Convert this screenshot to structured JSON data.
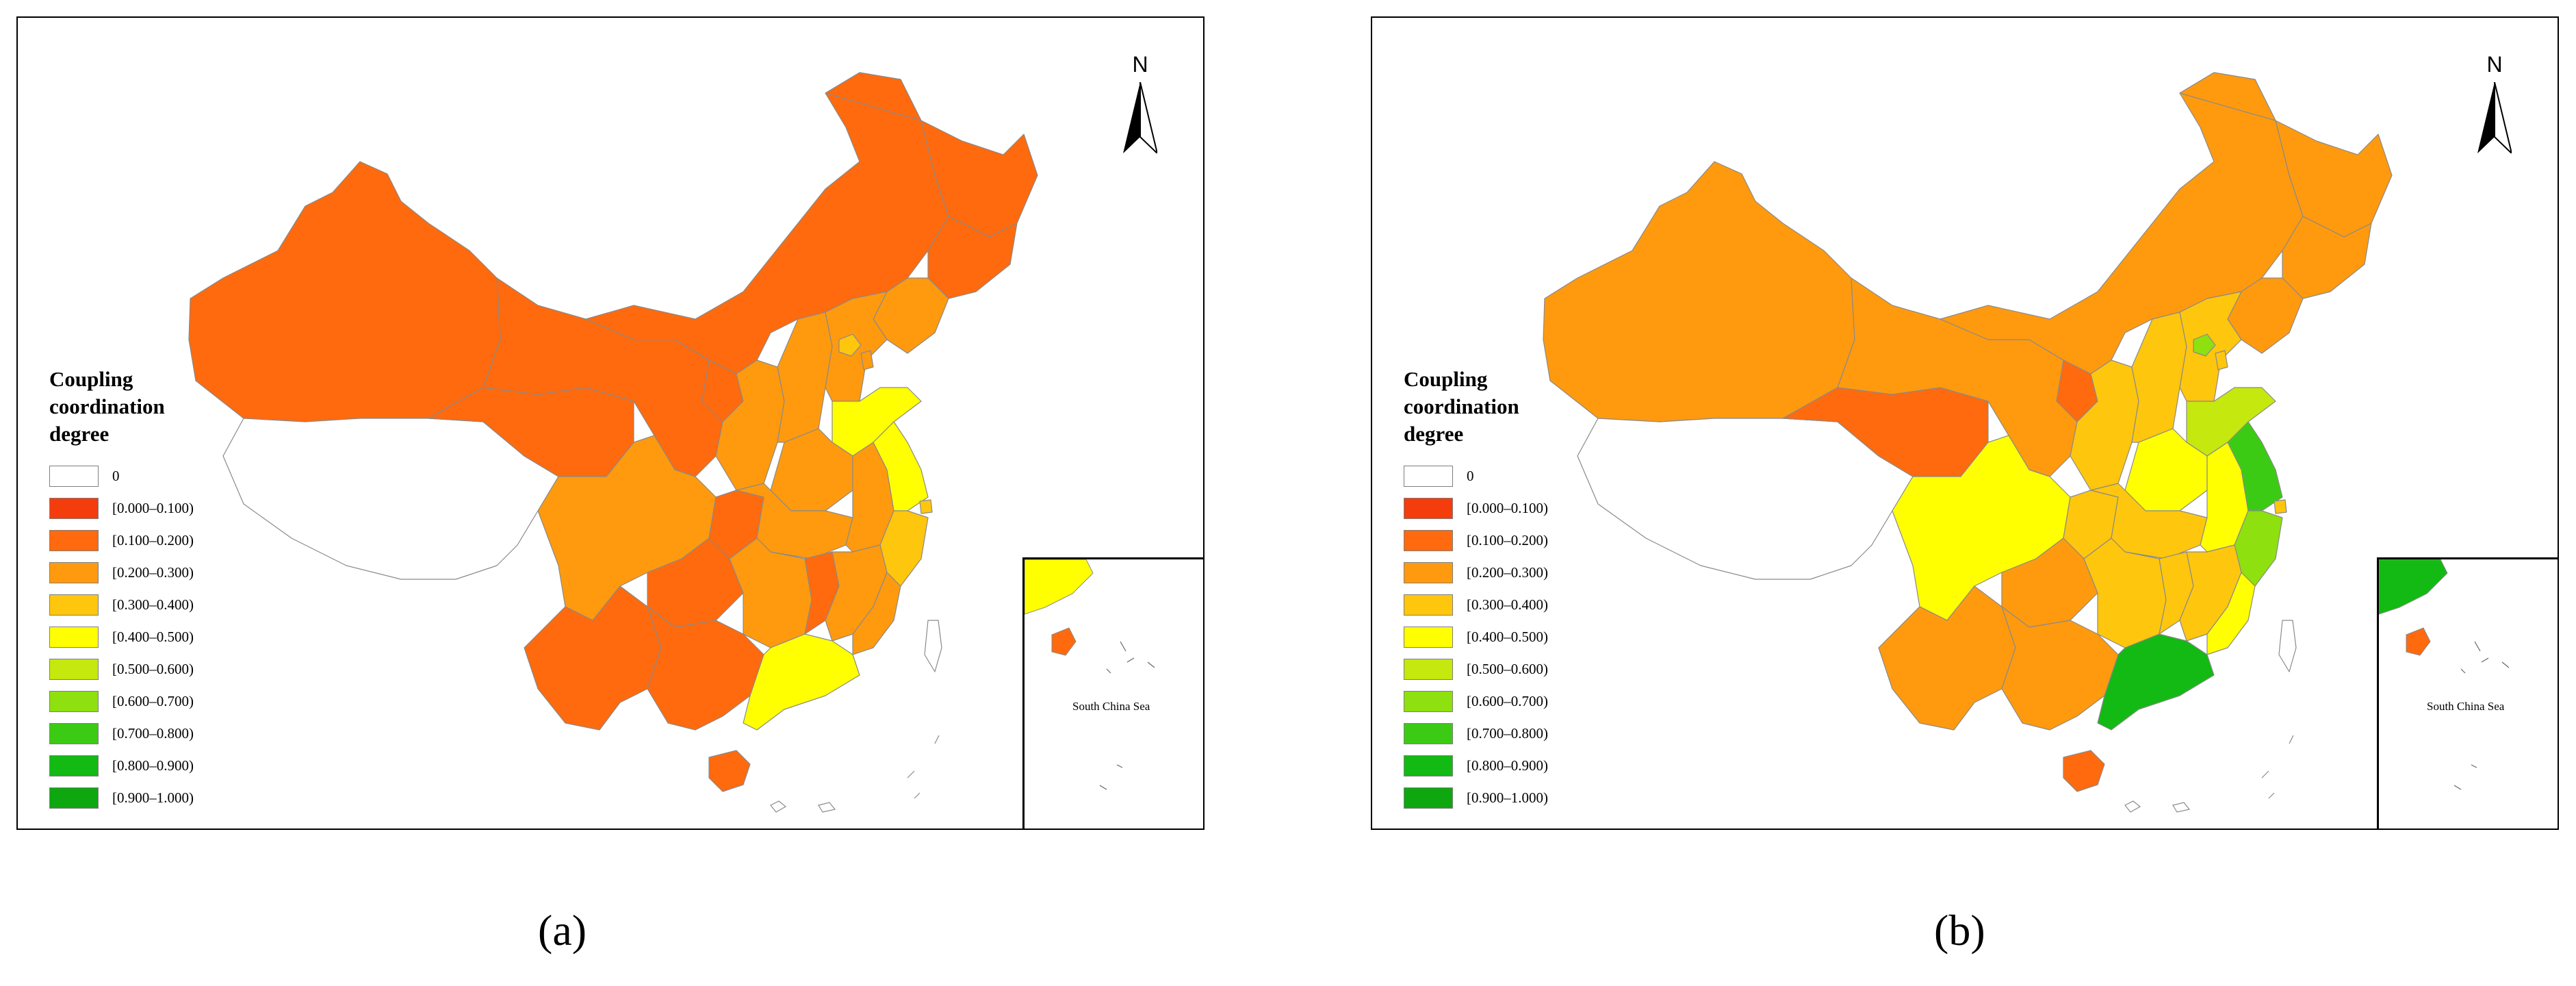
{
  "legend": {
    "title_lines": [
      "Coupling",
      "coordination",
      "degree"
    ],
    "classes": [
      {
        "label": "0",
        "color": "#ffffff"
      },
      {
        "label": "[0.000–0.100)",
        "color": "#f43c0d"
      },
      {
        "label": "[0.100–0.200)",
        "color": "#ff6a0e"
      },
      {
        "label": "[0.200–0.300)",
        "color": "#ff9a0f"
      },
      {
        "label": "[0.300–0.400)",
        "color": "#ffc60e"
      },
      {
        "label": "[0.400–0.500)",
        "color": "#ffff00"
      },
      {
        "label": "[0.500–0.600)",
        "color": "#c5e80e"
      },
      {
        "label": "[0.600–0.700)",
        "color": "#8ee00e"
      },
      {
        "label": "[0.700–0.800)",
        "color": "#3ccb14"
      },
      {
        "label": "[0.800–0.900)",
        "color": "#13ba13"
      },
      {
        "label": "[0.900–1.000)",
        "color": "#0fa70f"
      }
    ]
  },
  "north_label": "N",
  "inset_label": "South China Sea",
  "maps": [
    {
      "caption": "(a)",
      "regions": {
        "xinjiang": 2,
        "tibet": 0,
        "qinghai": 2,
        "gansu": 2,
        "inner_mongolia": 2,
        "heilongjiang": 2,
        "jilin": 2,
        "liaoning": 3,
        "ningxia": 2,
        "shaanxi": 3,
        "shanxi": 3,
        "hebei": 3,
        "beijing": 4,
        "tianjin": 3,
        "shandong": 5,
        "henan": 3,
        "sichuan": 3,
        "chongqing": 2,
        "hubei": 3,
        "anhui": 3,
        "jiangsu": 5,
        "shanghai": 4,
        "zhejiang": 4,
        "yunnan": 2,
        "guizhou": 2,
        "guangxi": 2,
        "hunan": 3,
        "hunan_east": 2,
        "jiangxi": 3,
        "fujian": 3,
        "guangdong": 5,
        "hainan": 2,
        "taiwan": 0
      }
    },
    {
      "caption": "(b)",
      "regions": {
        "xinjiang": 3,
        "tibet": 0,
        "qinghai": 2,
        "gansu": 3,
        "inner_mongolia": 3,
        "heilongjiang": 3,
        "jilin": 3,
        "liaoning": 3,
        "ningxia": 2,
        "shaanxi": 4,
        "shanxi": 4,
        "hebei": 4,
        "beijing": 7,
        "tianjin": 4,
        "shandong": 6,
        "henan": 5,
        "sichuan": 5,
        "chongqing": 4,
        "hubei": 4,
        "anhui": 5,
        "jiangsu": 8,
        "shanghai": 4,
        "zhejiang": 7,
        "yunnan": 3,
        "guizhou": 3,
        "guangxi": 3,
        "hunan": 4,
        "hunan_east": 4,
        "jiangxi": 4,
        "fujian": 5,
        "guangdong": 9,
        "hainan": 2,
        "taiwan": 0
      }
    }
  ]
}
